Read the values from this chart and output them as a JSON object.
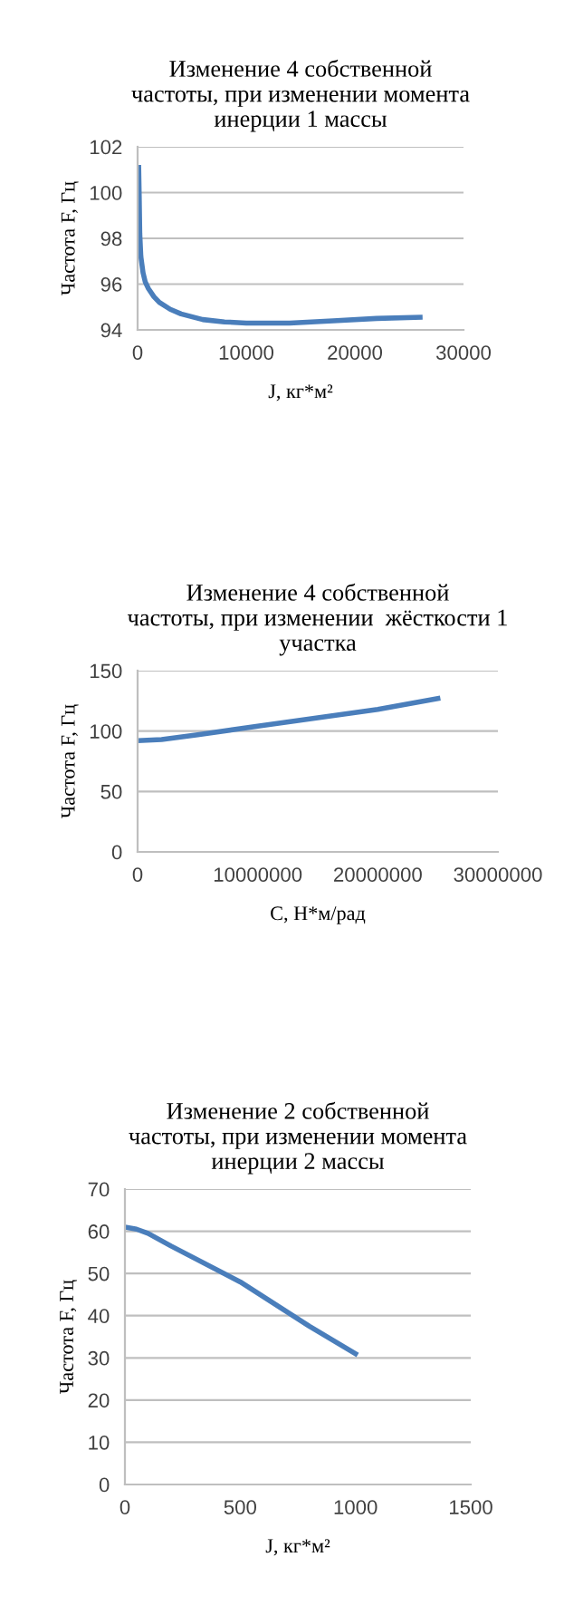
{
  "chart_data": [
    {
      "type": "line",
      "title": "Изменение 4 собственной\nчастоты, при изменении момента\nинерции 1 массы",
      "xlabel": "J, кг*м²",
      "ylabel": "Частота F, Гц",
      "x": [
        100,
        150,
        200,
        300,
        500,
        700,
        1000,
        1500,
        2000,
        3000,
        4000,
        6000,
        8000,
        10000,
        14000,
        18000,
        22000,
        26000
      ],
      "series": [
        {
          "color": "#4a7ebb",
          "values": [
            101.1,
            99.8,
            98.2,
            97.2,
            96.5,
            96.1,
            95.8,
            95.45,
            95.2,
            94.9,
            94.7,
            94.45,
            94.35,
            94.3,
            94.3,
            94.4,
            94.5,
            94.55
          ]
        }
      ],
      "xlim": [
        0,
        30000
      ],
      "xticks": [
        0,
        10000,
        20000,
        30000
      ],
      "ylim": [
        94,
        102
      ],
      "yticks": [
        94,
        96,
        98,
        100,
        102
      ],
      "grid": "y",
      "line_style": "solid"
    },
    {
      "type": "line",
      "title": "Изменение 4 собственной\nчастоты, при изменении  жёсткости 1\nучастка",
      "xlabel": "С, Н*м/рад",
      "ylabel": "Частота F, Гц",
      "x": [
        0,
        2000000,
        5000000,
        10000000,
        15000000,
        20000000,
        25000000
      ],
      "series": [
        {
          "color": "#4a7ebb",
          "values": [
            92,
            93,
            97,
            104,
            111,
            118,
            127
          ]
        }
      ],
      "xlim": [
        0,
        30000000
      ],
      "xticks": [
        0,
        10000000,
        20000000,
        30000000
      ],
      "ylim": [
        0,
        150
      ],
      "yticks": [
        0,
        50,
        100,
        150
      ],
      "grid": "y",
      "line_style": "solid"
    },
    {
      "type": "line",
      "title": "Изменение 2 собственной\nчастоты, при изменении момента\nинерции 2 массы",
      "xlabel": "J, кг*м²",
      "ylabel": "Частота F, Гц",
      "x": [
        0,
        50,
        100,
        200,
        500,
        800,
        1000
      ],
      "series": [
        {
          "color": "#4a7ebb",
          "values": [
            61,
            60.5,
            59.5,
            56.5,
            48,
            37.5,
            31
          ]
        }
      ],
      "xlim": [
        0,
        1500
      ],
      "xticks": [
        0,
        500,
        1000,
        1500
      ],
      "ylim": [
        0,
        70
      ],
      "yticks": [
        0,
        10,
        20,
        30,
        40,
        50,
        60,
        70
      ],
      "grid": "y",
      "line_style": "solid"
    }
  ]
}
